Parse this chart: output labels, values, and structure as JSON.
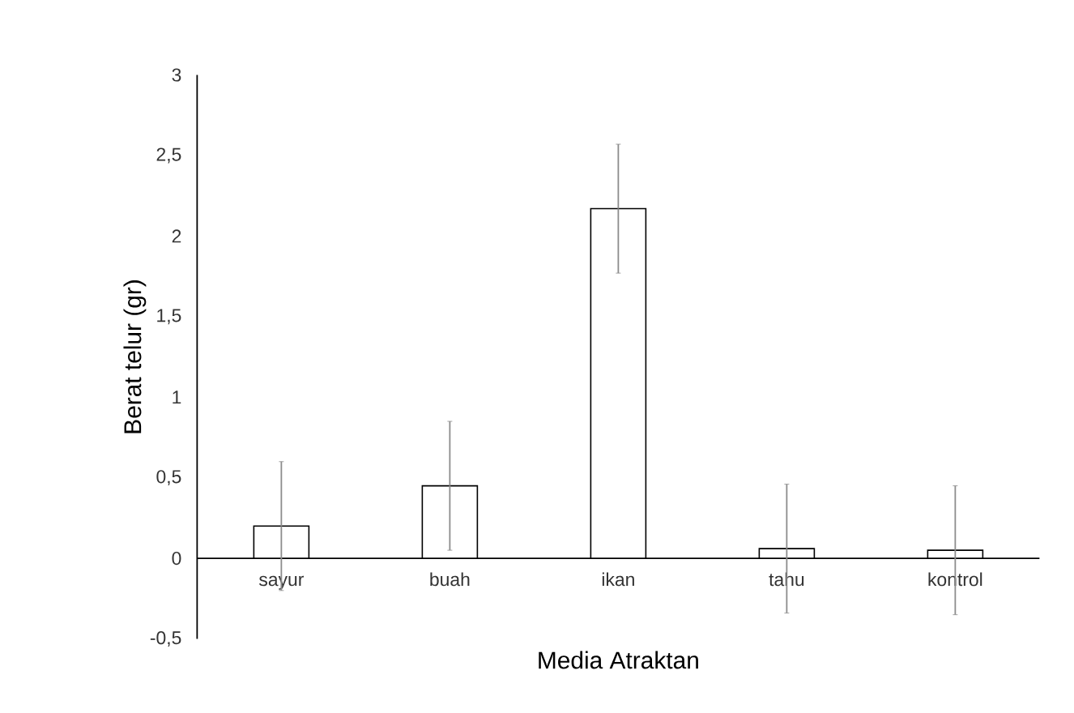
{
  "chart_data": {
    "type": "bar",
    "xlabel": "Media Atraktan",
    "ylabel": "Berat telur (gr)",
    "categories": [
      "sayur",
      "buah",
      "ikan",
      "tahu",
      "kontrol"
    ],
    "values": [
      0.2,
      0.45,
      2.17,
      0.06,
      0.05
    ],
    "errors": [
      0.4,
      0.4,
      0.4,
      0.4,
      0.4
    ],
    "color": "#ffffff",
    "ylim": [
      -0.5,
      3
    ],
    "yticks": [
      {
        "value": -0.5,
        "label": "-0,5"
      },
      0,
      {
        "value": 0.5,
        "label": "0,5"
      },
      1,
      {
        "value": 1.5,
        "label": "1,5"
      },
      2,
      {
        "value": 2.5,
        "label": "2,5"
      },
      3
    ],
    "grid": false
  }
}
